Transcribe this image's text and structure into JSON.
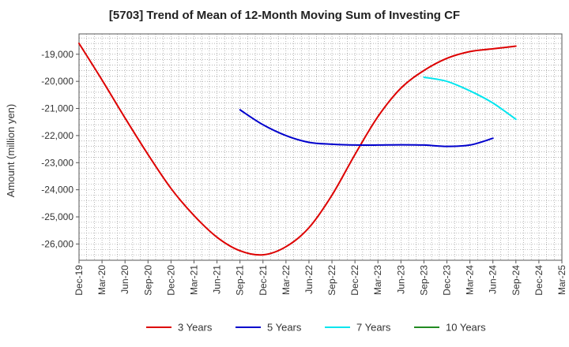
{
  "chart_data": {
    "type": "line",
    "title": "[5703]  Trend of Mean of 12-Month Moving Sum of Investing CF",
    "xlabel": "",
    "ylabel": "Amount (million yen)",
    "ylim": [
      -26600,
      -18250
    ],
    "x_ticks": [
      "Dec-19",
      "Mar-20",
      "Jun-20",
      "Sep-20",
      "Dec-20",
      "Mar-21",
      "Jun-21",
      "Sep-21",
      "Dec-21",
      "Mar-22",
      "Jun-22",
      "Sep-22",
      "Dec-22",
      "Mar-23",
      "Jun-23",
      "Sep-23",
      "Dec-23",
      "Mar-24",
      "Jun-24",
      "Sep-24",
      "Dec-24",
      "Mar-25"
    ],
    "y_ticks": [
      -26000,
      -25000,
      -24000,
      -23000,
      -22000,
      -21000,
      -20000,
      -19000
    ],
    "y_tick_labels": [
      "-26,000",
      "-25,000",
      "-24,000",
      "-23,000",
      "-22,000",
      "-21,000",
      "-20,000",
      "-19,000"
    ],
    "grid": true,
    "legend_position": "bottom",
    "series": [
      {
        "name": "3 Years",
        "color": "#dd0000",
        "start_index": 0,
        "values": [
          -18600,
          -19950,
          -21350,
          -22700,
          -23950,
          -24950,
          -25750,
          -26250,
          -26400,
          -26100,
          -25400,
          -24200,
          -22700,
          -21300,
          -20250,
          -19600,
          -19150,
          -18900,
          -18800,
          -18700
        ]
      },
      {
        "name": "5 Years",
        "color": "#0000cc",
        "start_index": 7,
        "values": [
          -21050,
          -21600,
          -22000,
          -22250,
          -22320,
          -22350,
          -22350,
          -22340,
          -22350,
          -22400,
          -22350,
          -22100
        ]
      },
      {
        "name": "7 Years",
        "color": "#00e5ee",
        "start_index": 15,
        "values": [
          -19850,
          -20000,
          -20350,
          -20800,
          -21400
        ]
      },
      {
        "name": "10 Years",
        "color": "#228b22",
        "start_index": 0,
        "values": []
      }
    ]
  }
}
